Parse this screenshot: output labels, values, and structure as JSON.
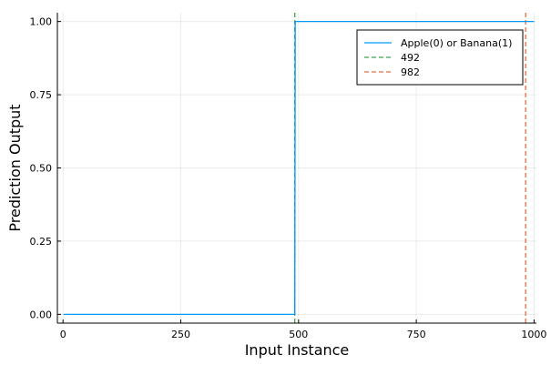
{
  "chart_data": {
    "type": "line",
    "title": "",
    "xlabel": "Input Instance",
    "ylabel": "Prediction Output",
    "xlim": [
      -12,
      1005
    ],
    "ylim": [
      -0.03,
      1.03
    ],
    "xticks": [
      0,
      250,
      500,
      750,
      1000
    ],
    "xtick_labels": [
      "0",
      "250",
      "500",
      "750",
      "1000"
    ],
    "yticks": [
      0.0,
      0.25,
      0.5,
      0.75,
      1.0
    ],
    "ytick_labels": [
      "0.00",
      "0.25",
      "0.50",
      "0.75",
      "1.00"
    ],
    "grid": true,
    "legend_position": "top-right",
    "series": [
      {
        "name": "Apple(0) or Banana(1)",
        "style": "solid",
        "color": "#009AFA",
        "x": [
          1,
          492,
          493,
          1000
        ],
        "y": [
          0,
          0,
          1,
          1
        ]
      }
    ],
    "vlines": [
      {
        "name": "492",
        "x": 492,
        "style": "dashed",
        "color": "#3DA44D"
      },
      {
        "name": "982",
        "x": 982,
        "style": "dashed",
        "color": "#E26F46"
      }
    ]
  }
}
